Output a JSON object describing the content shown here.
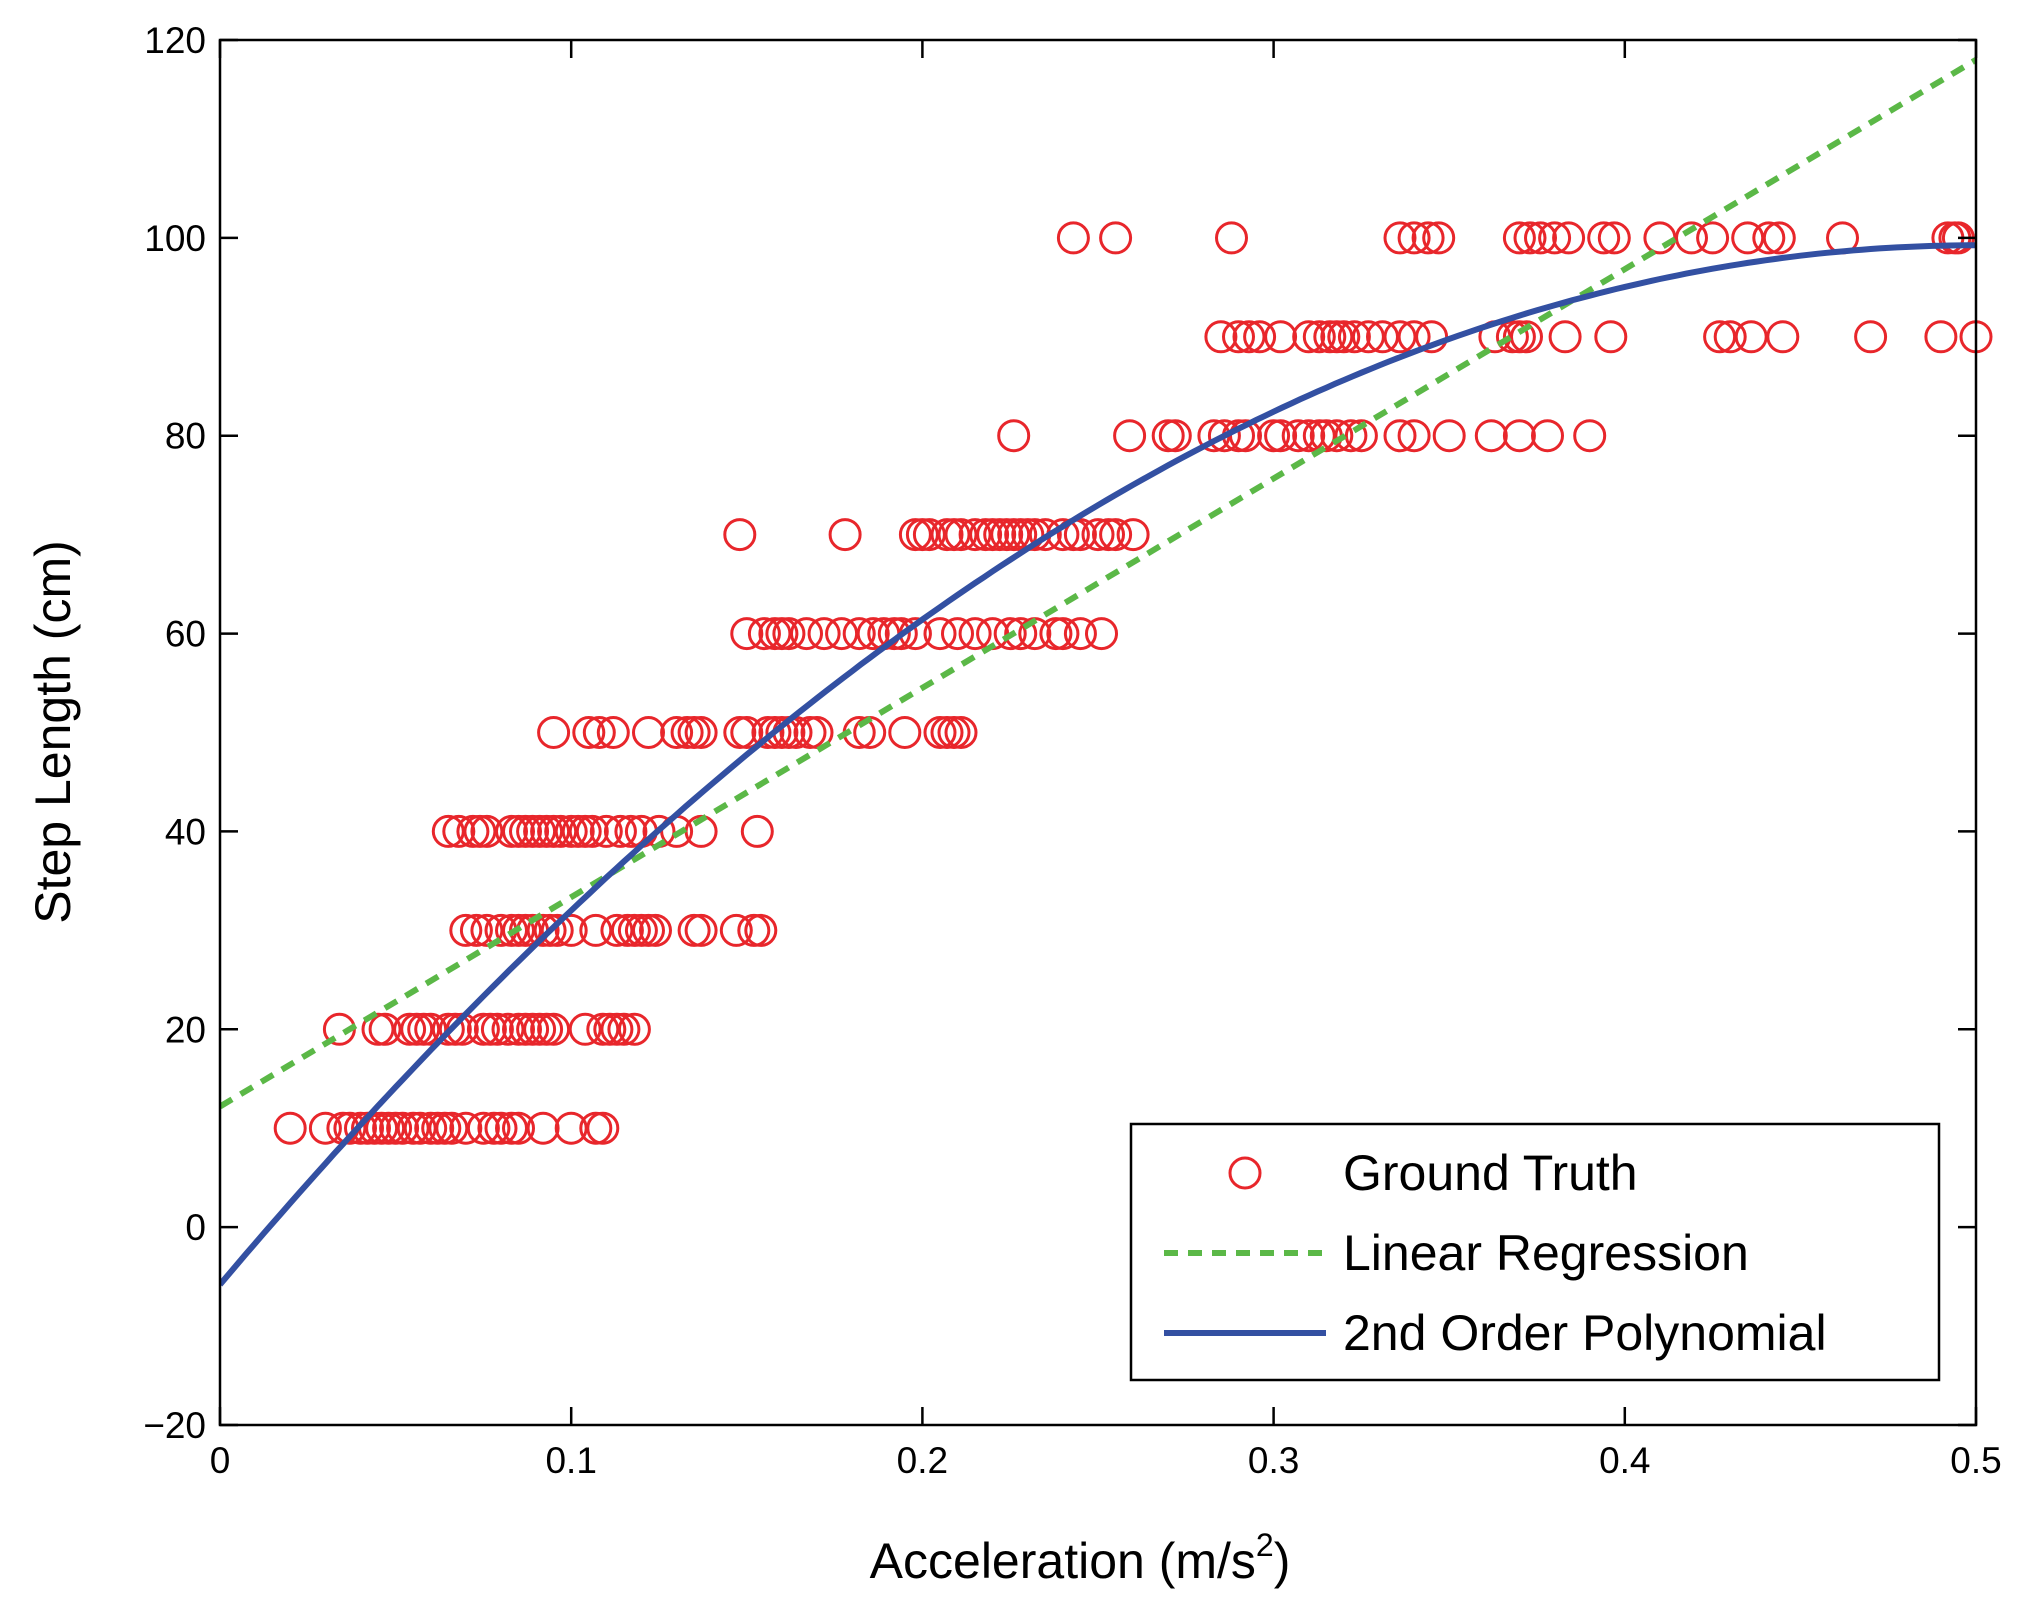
{
  "chart_data": {
    "type": "scatter",
    "xlabel": "Acceleration (m/s",
    "xlabel_superscript": "2",
    "xlabel_suffix": ")",
    "ylabel": "Step Length (cm)",
    "xlim": [
      0,
      0.5
    ],
    "ylim": [
      -20,
      120
    ],
    "xticks": [
      0,
      0.1,
      0.2,
      0.3,
      0.4,
      0.5
    ],
    "xtick_labels": [
      "0",
      "0.1",
      "0.2",
      "0.3",
      "0.4",
      "0.5"
    ],
    "yticks": [
      -20,
      0,
      20,
      40,
      60,
      80,
      100,
      120
    ],
    "ytick_labels": [
      "−20",
      "0",
      "20",
      "40",
      "60",
      "80",
      "100",
      "120"
    ],
    "legend_position": "bottom-right",
    "colors": {
      "ground_truth": "#e8262b",
      "linear": "#5bb847",
      "poly": "#3350a2"
    },
    "series": [
      {
        "name": "Ground Truth",
        "kind": "scatter",
        "groups": [
          {
            "y": 10,
            "x": [
              0.02,
              0.03,
              0.035,
              0.037,
              0.04,
              0.042,
              0.044,
              0.046,
              0.048,
              0.05,
              0.052,
              0.055,
              0.057,
              0.06,
              0.062,
              0.064,
              0.066,
              0.07,
              0.075,
              0.078,
              0.08,
              0.083,
              0.085,
              0.092,
              0.1,
              0.107,
              0.109
            ]
          },
          {
            "y": 20,
            "x": [
              0.034,
              0.045,
              0.047,
              0.054,
              0.056,
              0.058,
              0.06,
              0.065,
              0.067,
              0.069,
              0.075,
              0.077,
              0.079,
              0.082,
              0.085,
              0.087,
              0.089,
              0.091,
              0.093,
              0.095,
              0.104,
              0.109,
              0.111,
              0.113,
              0.115,
              0.118
            ]
          },
          {
            "y": 30,
            "x": [
              0.07,
              0.073,
              0.076,
              0.08,
              0.083,
              0.085,
              0.087,
              0.089,
              0.092,
              0.094,
              0.096,
              0.1,
              0.107,
              0.113,
              0.116,
              0.118,
              0.12,
              0.122,
              0.124,
              0.135,
              0.137,
              0.147,
              0.152,
              0.154
            ]
          },
          {
            "y": 40,
            "x": [
              0.065,
              0.068,
              0.072,
              0.074,
              0.076,
              0.083,
              0.085,
              0.087,
              0.089,
              0.091,
              0.093,
              0.095,
              0.097,
              0.1,
              0.102,
              0.104,
              0.106,
              0.11,
              0.114,
              0.117,
              0.12,
              0.125,
              0.13,
              0.137,
              0.153
            ]
          },
          {
            "y": 50,
            "x": [
              0.095,
              0.105,
              0.108,
              0.112,
              0.122,
              0.13,
              0.133,
              0.135,
              0.137,
              0.148,
              0.15,
              0.156,
              0.158,
              0.16,
              0.162,
              0.164,
              0.168,
              0.17,
              0.182,
              0.185,
              0.195,
              0.205,
              0.207,
              0.209,
              0.211
            ]
          },
          {
            "y": 60,
            "x": [
              0.15,
              0.155,
              0.158,
              0.16,
              0.162,
              0.167,
              0.172,
              0.177,
              0.182,
              0.186,
              0.189,
              0.192,
              0.194,
              0.198,
              0.205,
              0.21,
              0.215,
              0.22,
              0.225,
              0.228,
              0.232,
              0.238,
              0.24,
              0.245,
              0.251
            ]
          },
          {
            "y": 70,
            "x": [
              0.148,
              0.178,
              0.198,
              0.2,
              0.202,
              0.207,
              0.209,
              0.211,
              0.215,
              0.218,
              0.22,
              0.222,
              0.224,
              0.226,
              0.228,
              0.23,
              0.232,
              0.235,
              0.24,
              0.243,
              0.245,
              0.25,
              0.253,
              0.255,
              0.26
            ]
          },
          {
            "y": 80,
            "x": [
              0.226,
              0.259,
              0.27,
              0.272,
              0.283,
              0.286,
              0.29,
              0.292,
              0.3,
              0.302,
              0.307,
              0.31,
              0.313,
              0.315,
              0.318,
              0.322,
              0.325,
              0.336,
              0.34,
              0.35,
              0.362,
              0.37,
              0.378,
              0.39
            ]
          },
          {
            "y": 90,
            "x": [
              0.285,
              0.29,
              0.293,
              0.296,
              0.302,
              0.31,
              0.313,
              0.316,
              0.318,
              0.32,
              0.323,
              0.327,
              0.331,
              0.336,
              0.34,
              0.345,
              0.363,
              0.368,
              0.37,
              0.372,
              0.383,
              0.396,
              0.427,
              0.43,
              0.436,
              0.445,
              0.47,
              0.49,
              0.5
            ]
          },
          {
            "y": 100,
            "x": [
              0.243,
              0.255,
              0.288,
              0.336,
              0.34,
              0.344,
              0.347,
              0.37,
              0.373,
              0.376,
              0.38,
              0.384,
              0.394,
              0.397,
              0.41,
              0.419,
              0.425,
              0.435,
              0.441,
              0.444,
              0.462,
              0.492,
              0.494,
              0.495
            ]
          }
        ]
      },
      {
        "name": "Linear Regression",
        "kind": "line",
        "intercept": 12.2,
        "slope": 211.6
      },
      {
        "name": "2nd Order Polynomial",
        "kind": "line",
        "coefficients": [
          -5.8,
          420.1,
          -420.0
        ]
      }
    ]
  }
}
